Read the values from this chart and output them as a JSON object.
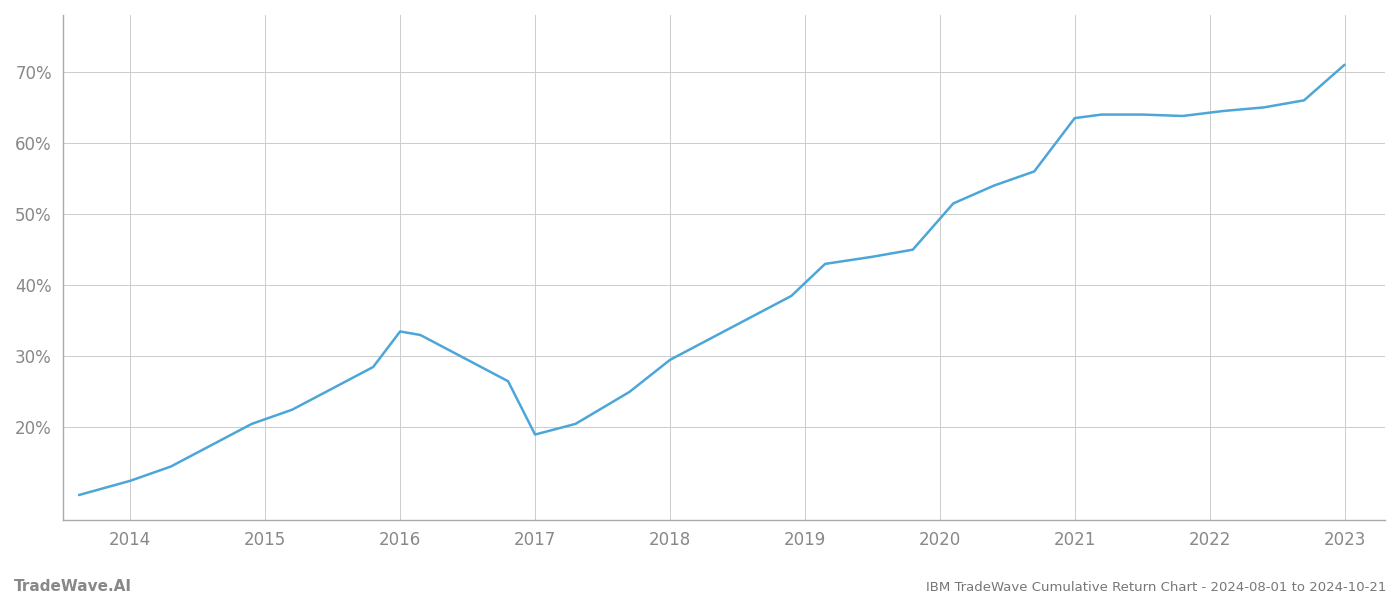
{
  "title": "IBM TradeWave Cumulative Return Chart - 2024-08-01 to 2024-10-21",
  "watermark": "TradeWave.AI",
  "line_color": "#4da6d8",
  "background_color": "#ffffff",
  "grid_color": "#cccccc",
  "x_values": [
    2013.62,
    2014.0,
    2014.3,
    2014.6,
    2014.9,
    2015.2,
    2015.5,
    2015.8,
    2016.0,
    2016.15,
    2016.5,
    2016.8,
    2017.0,
    2017.3,
    2017.7,
    2018.0,
    2018.3,
    2018.6,
    2018.9,
    2019.15,
    2019.5,
    2019.8,
    2020.1,
    2020.4,
    2020.7,
    2021.0,
    2021.2,
    2021.5,
    2021.8,
    2022.1,
    2022.4,
    2022.7,
    2023.0
  ],
  "y_values": [
    10.5,
    12.5,
    14.5,
    17.5,
    20.5,
    22.5,
    25.5,
    28.5,
    33.5,
    33.0,
    29.5,
    26.5,
    19.0,
    20.5,
    25.0,
    29.5,
    32.5,
    35.5,
    38.5,
    43.0,
    44.0,
    45.0,
    51.5,
    54.0,
    56.0,
    63.5,
    64.0,
    64.0,
    63.8,
    64.5,
    65.0,
    66.0,
    71.0
  ],
  "xlim": [
    2013.5,
    2023.3
  ],
  "ylim": [
    7,
    78
  ],
  "xticks": [
    2014,
    2015,
    2016,
    2017,
    2018,
    2019,
    2020,
    2021,
    2022,
    2023
  ],
  "yticks": [
    20,
    30,
    40,
    50,
    60,
    70
  ],
  "ytick_labels": [
    "20%",
    "30%",
    "40%",
    "50%",
    "60%",
    "70%"
  ],
  "line_width": 1.8,
  "figsize": [
    14,
    6
  ],
  "dpi": 100,
  "spine_color": "#aaaaaa",
  "tick_color": "#888888",
  "title_color": "#777777",
  "watermark_color": "#888888"
}
